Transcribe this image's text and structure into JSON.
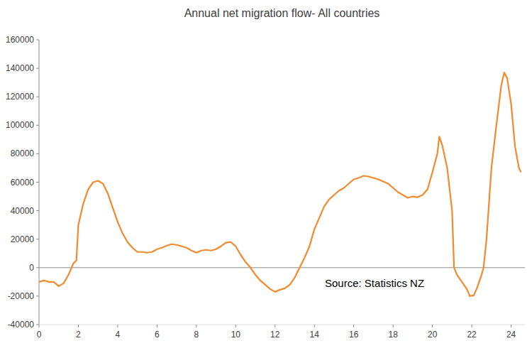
{
  "chart_data": {
    "type": "line",
    "title": "Annual net migration flow- All countries",
    "annotation": "Source: Statistics NZ",
    "color": "#f28a2e",
    "x": [
      0,
      0.25,
      0.5,
      0.75,
      1.0,
      1.25,
      1.5,
      1.75,
      1.9,
      2.0,
      2.25,
      2.5,
      2.75,
      3.0,
      3.25,
      3.5,
      3.75,
      4.0,
      4.25,
      4.5,
      4.75,
      5.0,
      5.25,
      5.5,
      5.75,
      6.0,
      6.25,
      6.5,
      6.75,
      7.0,
      7.25,
      7.5,
      7.75,
      8.0,
      8.25,
      8.5,
      8.75,
      9.0,
      9.25,
      9.5,
      9.75,
      10.0,
      10.25,
      10.5,
      10.75,
      11.0,
      11.25,
      11.5,
      11.75,
      12.0,
      12.25,
      12.5,
      12.75,
      13.0,
      13.25,
      13.5,
      13.75,
      14.0,
      14.25,
      14.5,
      14.75,
      15.0,
      15.25,
      15.5,
      15.75,
      16.0,
      16.25,
      16.5,
      16.75,
      17.0,
      17.25,
      17.5,
      17.75,
      18.0,
      18.25,
      18.5,
      18.75,
      19.0,
      19.25,
      19.5,
      19.75,
      20.0,
      20.25,
      20.35,
      20.5,
      20.75,
      21.0,
      21.1,
      21.25,
      21.5,
      21.75,
      21.9,
      22.1,
      22.25,
      22.5,
      22.6,
      22.75,
      23.0,
      23.25,
      23.5,
      23.65,
      23.8,
      24.0,
      24.2,
      24.4,
      24.5
    ],
    "values": [
      -10000,
      -9000,
      -10000,
      -10000,
      -13000,
      -11000,
      -5000,
      3000,
      5000,
      30000,
      45000,
      55000,
      60000,
      61000,
      59000,
      52000,
      42000,
      32000,
      24000,
      18000,
      14000,
      11000,
      11000,
      10500,
      11000,
      13000,
      14000,
      15500,
      16500,
      16000,
      15000,
      14000,
      12000,
      10500,
      12000,
      12500,
      12000,
      13000,
      15000,
      17500,
      18000,
      15000,
      9000,
      4000,
      0,
      -5000,
      -9000,
      -12000,
      -15000,
      -17000,
      -15500,
      -14500,
      -12000,
      -7000,
      0,
      7000,
      15000,
      27000,
      35000,
      43000,
      48000,
      51000,
      54000,
      56000,
      59000,
      62000,
      63000,
      64500,
      64000,
      63000,
      62000,
      60500,
      59000,
      56000,
      53000,
      51000,
      49000,
      50000,
      49500,
      51000,
      55000,
      67000,
      80000,
      92000,
      86000,
      70000,
      40000,
      0,
      -5000,
      -10000,
      -15000,
      -20000,
      -19500,
      -15000,
      -5000,
      0,
      20000,
      70000,
      100000,
      128000,
      137000,
      133000,
      115000,
      85000,
      70000,
      67000
    ],
    "xlim": [
      0,
      24.7
    ],
    "xticks": [
      0,
      2,
      4,
      6,
      8,
      10,
      12,
      14,
      16,
      18,
      20,
      22,
      24
    ],
    "ylim": [
      -40000,
      160000
    ],
    "yticks": [
      -40000,
      -20000,
      0,
      20000,
      40000,
      60000,
      80000,
      100000,
      120000,
      140000,
      160000
    ],
    "grid": false
  }
}
